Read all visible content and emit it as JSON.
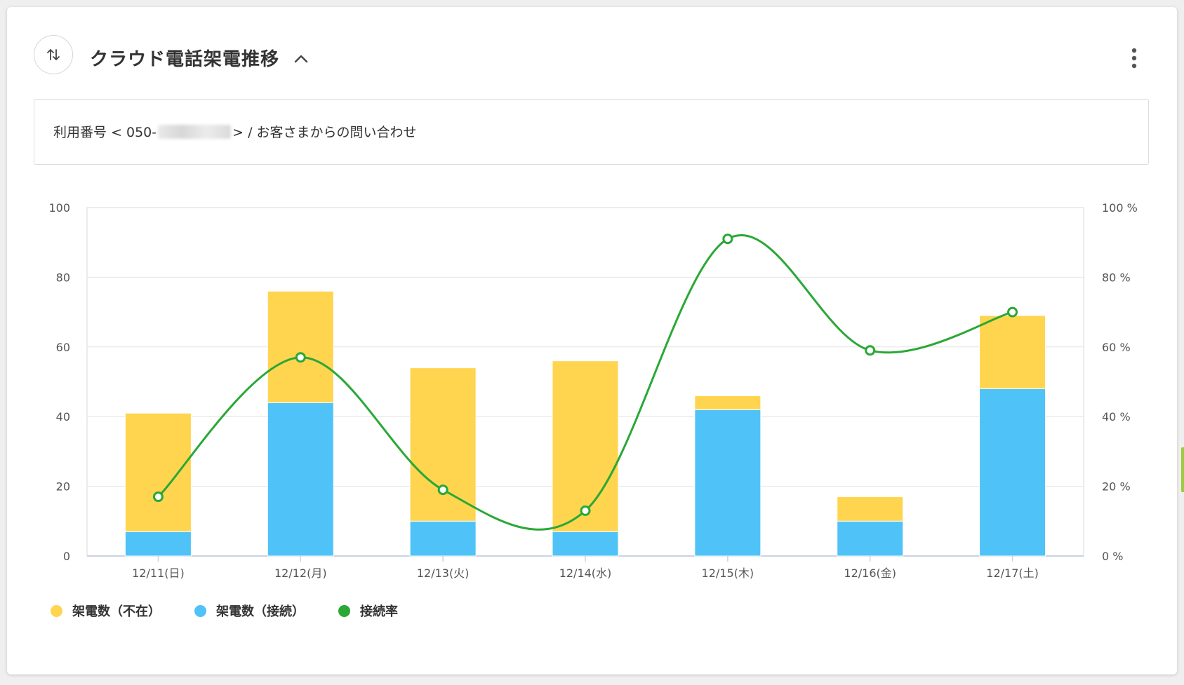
{
  "header": {
    "title": "クラウド電話架電推移",
    "sort_icon": "sort-arrows-icon",
    "collapse_icon": "chevron-up-icon",
    "more_icon": "more-vertical-icon"
  },
  "info": {
    "prefix": "利用番号 < 050-",
    "suffix": " > / お客さまからの問い合わせ"
  },
  "chart_data": {
    "type": "bar",
    "stacked": true,
    "categories": [
      "12/11(日)",
      "12/12(月)",
      "12/13(火)",
      "12/14(水)",
      "12/15(木)",
      "12/16(金)",
      "12/17(土)"
    ],
    "series": [
      {
        "name": "架電数（接続）",
        "type": "bar",
        "axis": "left",
        "color": "#4fc3f7",
        "values": [
          7,
          44,
          10,
          7,
          42,
          10,
          48
        ]
      },
      {
        "name": "架電数（不在）",
        "type": "bar",
        "axis": "left",
        "color": "#ffd54f",
        "values": [
          34,
          32,
          44,
          49,
          4,
          7,
          21
        ]
      },
      {
        "name": "接続率",
        "type": "line",
        "axis": "right",
        "color": "#2aa836",
        "values": [
          17,
          57,
          19,
          13,
          91,
          59,
          70
        ]
      }
    ],
    "ylim_left": [
      0,
      100
    ],
    "ylim_right": [
      0,
      100
    ],
    "yticks_left": [
      "0",
      "20",
      "40",
      "60",
      "80",
      "100"
    ],
    "yticks_right": [
      "0 %",
      "20 %",
      "40 %",
      "60 %",
      "80 %",
      "100 %"
    ],
    "grid": true,
    "legend_position": "bottom-left"
  },
  "legend": [
    {
      "label": "架電数（不在）",
      "color": "#ffd54f"
    },
    {
      "label": "架電数（接続）",
      "color": "#4fc3f7"
    },
    {
      "label": "接続率",
      "color": "#2aa836"
    }
  ]
}
